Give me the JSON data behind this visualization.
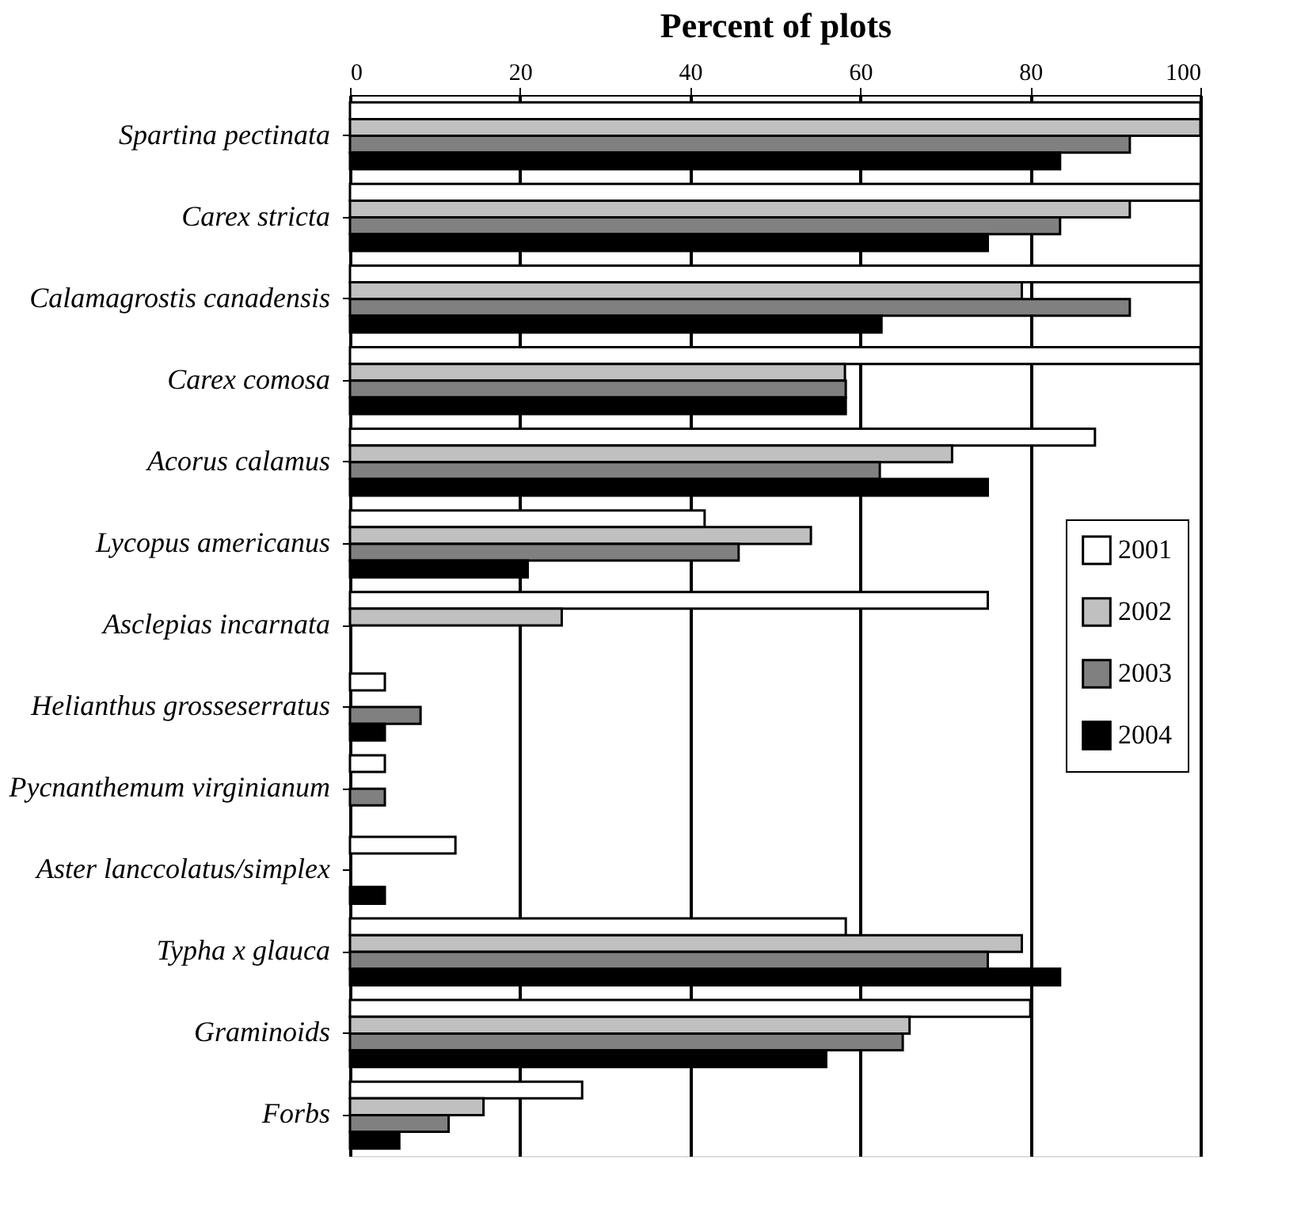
{
  "chart_data": {
    "type": "bar",
    "orientation": "horizontal",
    "xlabel": "Percent of plots",
    "categories": [
      "Spartina pectinata",
      "Carex stricta",
      "Calamagrostis canadensis",
      "Carex comosa",
      "Acorus calamus",
      "Lycopus americanus",
      "Asclepias incarnata",
      "Helianthus grosseserratus",
      "Pycnanthemum virginianum",
      "Aster lanccolatus/simplex",
      "Typha x glauca",
      "Graminoids",
      "Forbs"
    ],
    "series": [
      {
        "name": "2001",
        "color": "#ffffff",
        "values": [
          100,
          100,
          100,
          100,
          87.6,
          41.7,
          75,
          4.1,
          4.1,
          12.4,
          58.3,
          80,
          27.3
        ]
      },
      {
        "name": "2002",
        "color": "#c0c0c0",
        "values": [
          100,
          91.7,
          79,
          58.2,
          70.8,
          54.2,
          24.9,
          null,
          null,
          null,
          79,
          65.8,
          15.7
        ]
      },
      {
        "name": "2003",
        "color": "#808080",
        "values": [
          91.7,
          83.5,
          91.7,
          58.3,
          62.3,
          45.7,
          null,
          8.3,
          4.1,
          null,
          75,
          65,
          11.6
        ]
      },
      {
        "name": "2004",
        "color": "#000000",
        "values": [
          83.5,
          75,
          62.5,
          58.3,
          75,
          20.9,
          null,
          4.1,
          null,
          4.1,
          83.5,
          56,
          5.8
        ]
      }
    ],
    "xlim": [
      0,
      100
    ],
    "xticks": [
      0,
      20,
      40,
      60,
      80,
      100
    ],
    "grid": "x",
    "legend": "right"
  }
}
